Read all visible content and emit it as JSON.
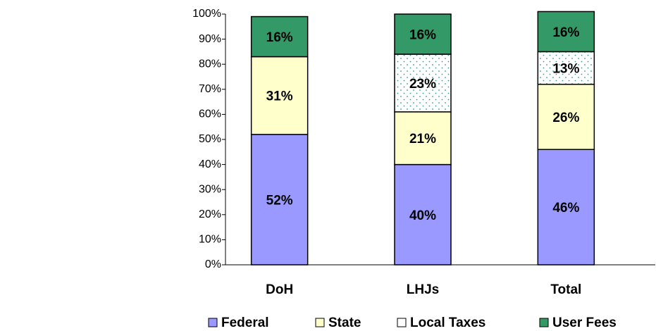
{
  "chart_data": {
    "type": "stacked_bar",
    "categories": [
      "DoH",
      "LHJs",
      "Total"
    ],
    "series": [
      {
        "name": "Federal",
        "color": "#9999ff",
        "values": [
          52,
          40,
          46
        ],
        "value_labels": [
          "52%",
          "40%",
          "46%"
        ]
      },
      {
        "name": "State",
        "color": "#ffffcc",
        "values": [
          31,
          21,
          26
        ],
        "value_labels": [
          "31%",
          "21%",
          "26%"
        ]
      },
      {
        "name": "Local Taxes",
        "color": "#ffffff",
        "values": [
          null,
          23,
          13
        ],
        "value_labels": [
          null,
          "23%",
          "13%"
        ]
      },
      {
        "name": "User Fees",
        "color": "#339966",
        "values": [
          16,
          16,
          16
        ],
        "value_labels": [
          "16%",
          "16%",
          "16%"
        ]
      }
    ],
    "ylim": [
      0,
      100
    ],
    "yticks": [
      {
        "value": 0,
        "label": "0%"
      },
      {
        "value": 10,
        "label": "10%"
      },
      {
        "value": 20,
        "label": "20%"
      },
      {
        "value": 30,
        "label": "30%"
      },
      {
        "value": 40,
        "label": "40%"
      },
      {
        "value": 50,
        "label": "50%"
      },
      {
        "value": 60,
        "label": "60%"
      },
      {
        "value": 70,
        "label": "70%"
      },
      {
        "value": 80,
        "label": "80%"
      },
      {
        "value": 90,
        "label": "90%"
      },
      {
        "value": 100,
        "label": "100%"
      }
    ],
    "grid": false,
    "legend": "bottom"
  }
}
